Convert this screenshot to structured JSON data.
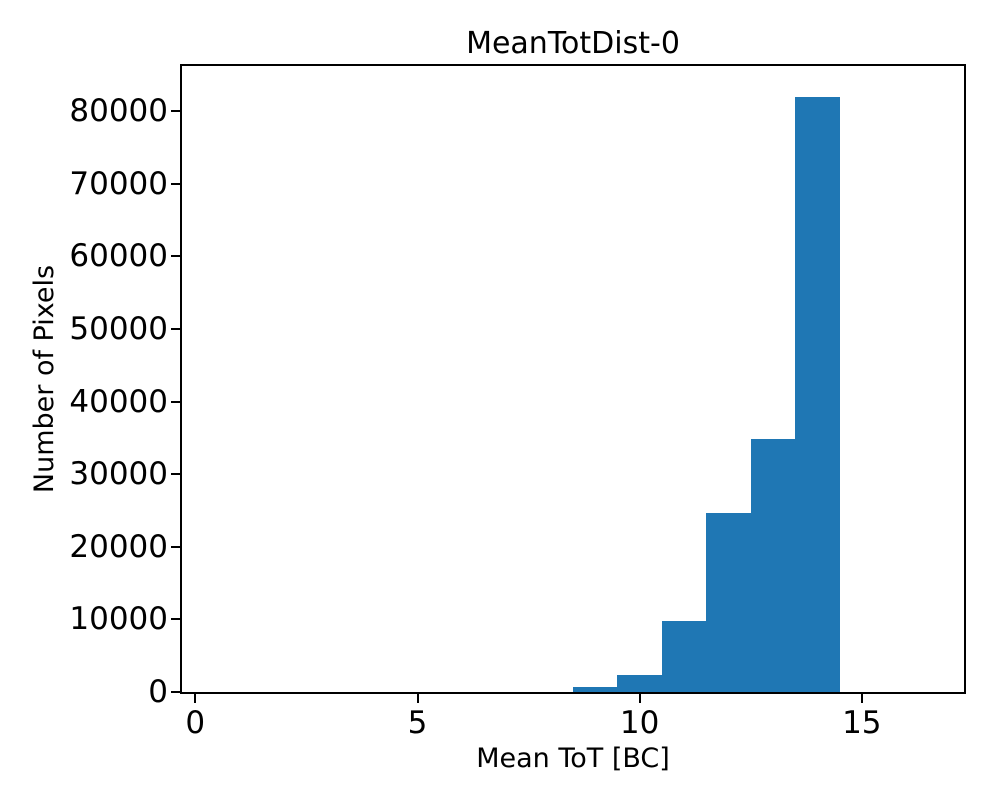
{
  "figure": {
    "background_color": "#ffffff",
    "text_color": "#000000"
  },
  "chart_data": {
    "type": "bar",
    "subtype": "histogram",
    "title": "MeanTotDist-0",
    "xlabel": "Mean ToT [BC]",
    "ylabel": "Number of Pixels",
    "bar_color": "#1f77b4",
    "grid": false,
    "legend": null,
    "xlim": [
      -0.3,
      17.3
    ],
    "ylim": [
      0,
      86200
    ],
    "xticks": [
      {
        "value": 0,
        "label": "0"
      },
      {
        "value": 5,
        "label": "5"
      },
      {
        "value": 10,
        "label": "10"
      },
      {
        "value": 15,
        "label": "15"
      }
    ],
    "yticks": [
      {
        "value": 0,
        "label": "0"
      },
      {
        "value": 10000,
        "label": "10000"
      },
      {
        "value": 20000,
        "label": "20000"
      },
      {
        "value": 30000,
        "label": "30000"
      },
      {
        "value": 40000,
        "label": "40000"
      },
      {
        "value": 50000,
        "label": "50000"
      },
      {
        "value": 60000,
        "label": "60000"
      },
      {
        "value": 70000,
        "label": "70000"
      },
      {
        "value": 80000,
        "label": "80000"
      }
    ],
    "bin_width": 1,
    "bins": [
      {
        "x0": 8.5,
        "x1": 9.5,
        "count": 700
      },
      {
        "x0": 9.5,
        "x1": 10.5,
        "count": 2400
      },
      {
        "x0": 10.5,
        "x1": 11.5,
        "count": 9800
      },
      {
        "x0": 11.5,
        "x1": 12.5,
        "count": 24600
      },
      {
        "x0": 12.5,
        "x1": 13.5,
        "count": 34900
      },
      {
        "x0": 13.5,
        "x1": 14.5,
        "count": 82000
      }
    ]
  }
}
